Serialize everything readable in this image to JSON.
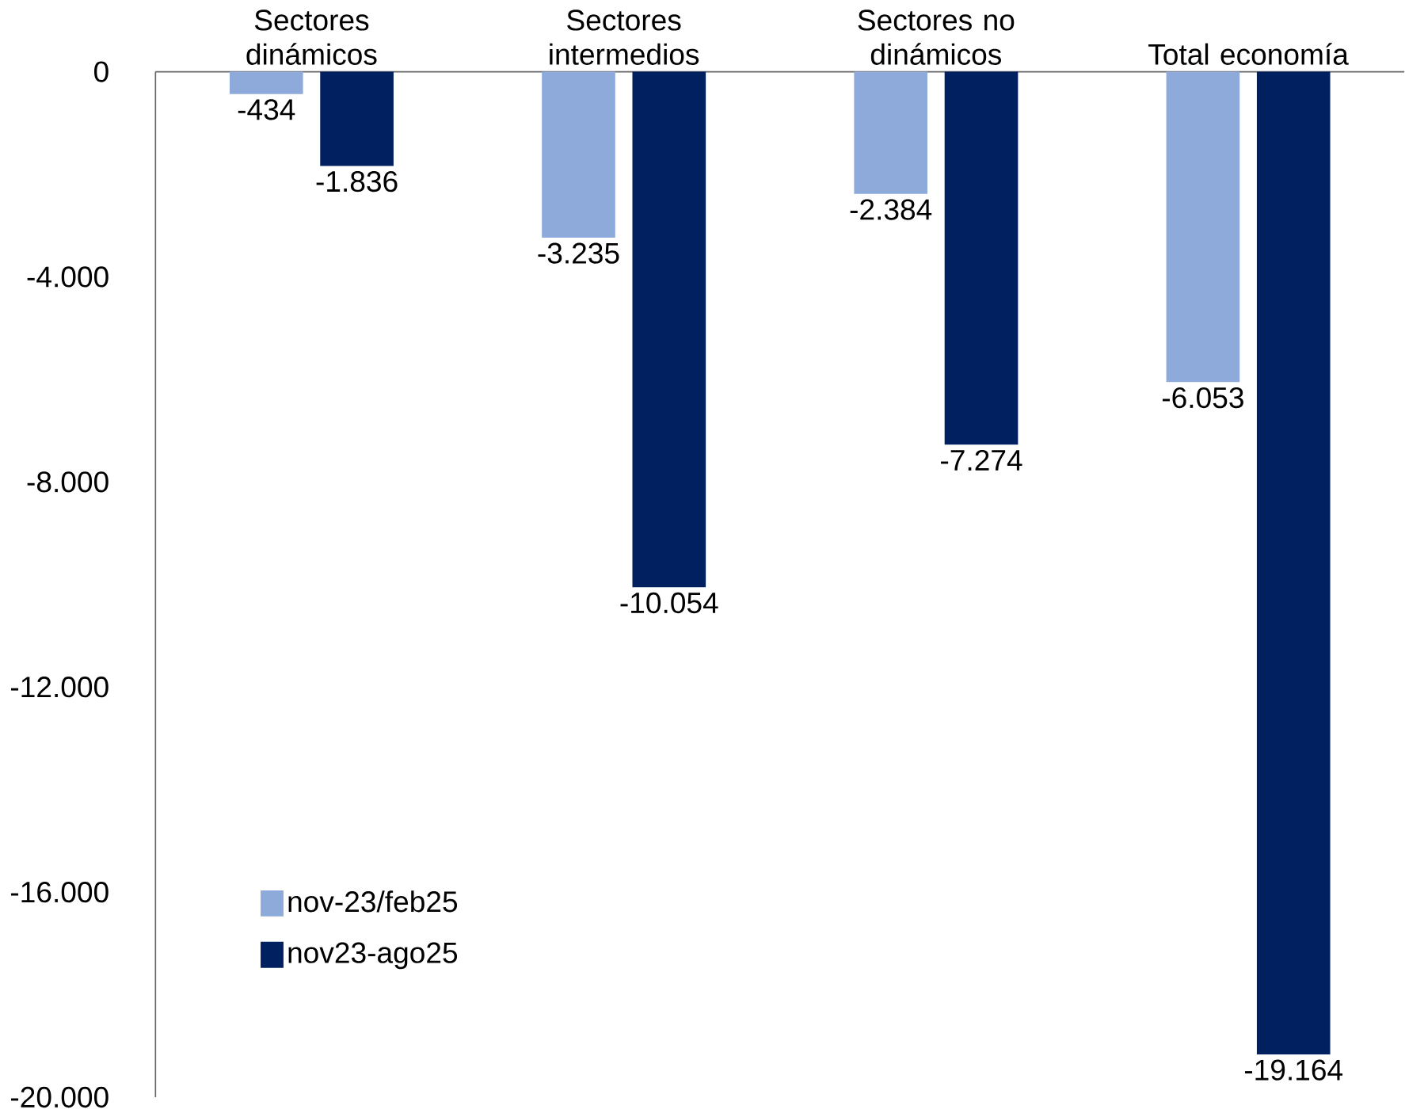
{
  "chart_data": {
    "type": "bar",
    "categories": [
      "Sectores dinámicos",
      "Sectores intermedios",
      "Sectores no dinámicos",
      "Total economía"
    ],
    "series": [
      {
        "name": "nov-23/feb25",
        "color": "#8eaadb",
        "values": [
          -434,
          -3235,
          -2384,
          -6053
        ],
        "value_labels": [
          "-434",
          "-3.235",
          "-2.384",
          "-6.053"
        ]
      },
      {
        "name": "nov23-ago25",
        "color": "#002060",
        "values": [
          -1836,
          -10054,
          -7274,
          -19164
        ],
        "value_labels": [
          "-1.836",
          "-10.054",
          "-7.274",
          "-19.164"
        ]
      }
    ],
    "ylim": [
      -20000,
      0
    ],
    "yticks": [
      {
        "value": -20000,
        "label": "-20.000"
      },
      {
        "value": -16000,
        "label": "-16.000"
      },
      {
        "value": -12000,
        "label": "-12.000"
      },
      {
        "value": -8000,
        "label": "-8.000"
      },
      {
        "value": -4000,
        "label": "-4.000"
      },
      0
    ],
    "grid": false,
    "legend": "bottom left"
  }
}
